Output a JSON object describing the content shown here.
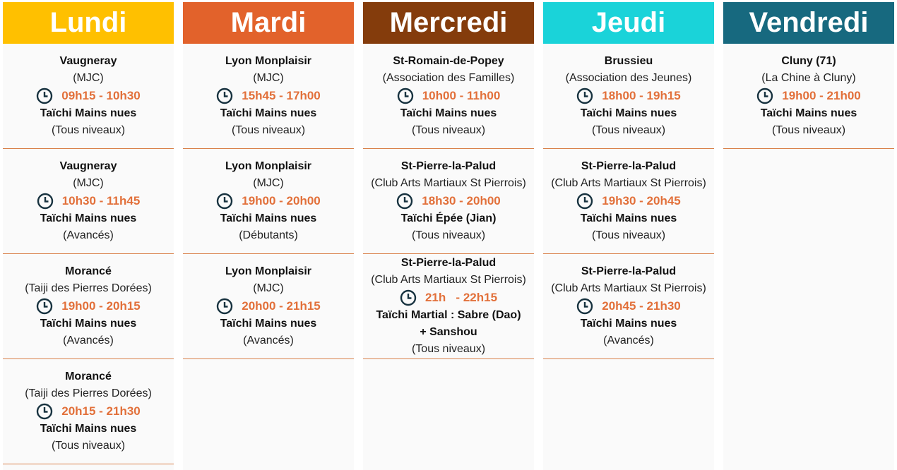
{
  "days": [
    {
      "name": "Lundi",
      "sessions": [
        {
          "place": "Vaugneray",
          "venue": "(MJC)",
          "time": "09h15 - 10h30",
          "style": "Taïchi Mains nues",
          "level": "(Tous niveaux)"
        },
        {
          "place": "Vaugneray",
          "venue": "(MJC)",
          "time": "10h30 - 11h45",
          "style": "Taïchi Mains nues",
          "level": "(Avancés)"
        },
        {
          "place": "Morancé",
          "venue": "(Taiji des Pierres Dorées)",
          "time": "19h00 - 20h15",
          "style": "Taïchi Mains nues",
          "level": "(Avancés)"
        },
        {
          "place": "Morancé",
          "venue": "(Taiji des Pierres Dorées)",
          "time": "20h15 - 21h30",
          "style": "Taïchi Mains nues",
          "level": "(Tous niveaux)"
        }
      ]
    },
    {
      "name": "Mardi",
      "sessions": [
        {
          "place": "Lyon Monplaisir",
          "venue": "(MJC)",
          "time": "15h45 - 17h00",
          "style": "Taïchi Mains nues",
          "level": "(Tous niveaux)"
        },
        {
          "place": "Lyon Monplaisir",
          "venue": "(MJC)",
          "time": "19h00 - 20h00",
          "style": "Taïchi Mains nues",
          "level": "(Débutants)"
        },
        {
          "place": "Lyon Monplaisir",
          "venue": "(MJC)",
          "time": "20h00 - 21h15",
          "style": "Taïchi Mains nues",
          "level": "(Avancés)"
        }
      ]
    },
    {
      "name": "Mercredi",
      "sessions": [
        {
          "place": "St-Romain-de-Popey",
          "venue": "(Association des Familles)",
          "time": "10h00 - 11h00",
          "style": "Taïchi Mains nues",
          "level": "(Tous niveaux)"
        },
        {
          "place": "St-Pierre-la-Palud",
          "venue": "(Club Arts Martiaux St Pierrois)",
          "time": "18h30 - 20h00",
          "style": "Taïchi Épée (Jian)",
          "level": "(Tous niveaux)"
        },
        {
          "place": "St-Pierre-la-Palud",
          "venue": "(Club Arts Martiaux St Pierrois)",
          "time": "21h   - 22h15",
          "style": "Taïchi Martial : Sabre (Dao) + Sanshou",
          "level": "(Tous niveaux)"
        }
      ]
    },
    {
      "name": "Jeudi",
      "sessions": [
        {
          "place": "Brussieu",
          "venue": "(Association des Jeunes)",
          "time": "18h00 - 19h15",
          "style": "Taïchi Mains nues",
          "level": "(Tous niveaux)"
        },
        {
          "place": "St-Pierre-la-Palud",
          "venue": "(Club Arts Martiaux St Pierrois)",
          "time": "19h30 - 20h45",
          "style": "Taïchi Mains nues",
          "level": "(Tous niveaux)"
        },
        {
          "place": "St-Pierre-la-Palud",
          "venue": "(Club Arts Martiaux St Pierrois)",
          "time": "20h45 - 21h30",
          "style": "Taïchi Mains nues",
          "level": "(Avancés)"
        }
      ]
    },
    {
      "name": "Vendredi",
      "sessions": [
        {
          "place": "Cluny (71)",
          "venue": "(La Chine à Cluny)",
          "time": "19h00 - 21h00",
          "style": "Taïchi Mains nues",
          "level": "(Tous niveaux)"
        }
      ]
    }
  ]
}
